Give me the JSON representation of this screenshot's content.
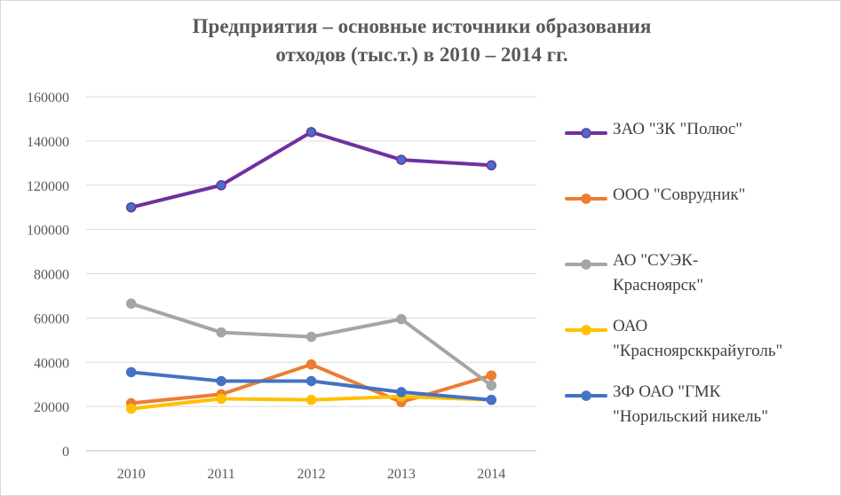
{
  "chart_data": {
    "type": "line",
    "title_lines": [
      "Предприятия – основные источники образования",
      "отходов (тыс.т.) в 2010 – 2014 гг."
    ],
    "categories": [
      "2010",
      "2011",
      "2012",
      "2013",
      "2014"
    ],
    "ylim": [
      0,
      160000
    ],
    "yticks": [
      "0",
      "20000",
      "40000",
      "60000",
      "80000",
      "100000",
      "120000",
      "140000",
      "160000"
    ],
    "grid": true,
    "legend_position": "right",
    "series": [
      {
        "name": "ЗАО \"ЗК \"Полюс\"",
        "color": "#7030a0",
        "marker": "#4472c4",
        "values": [
          110000,
          120000,
          144000,
          131500,
          129000
        ]
      },
      {
        "name": "ООО \"Соврудник\"",
        "color": "#ed7d31",
        "marker": "#ed7d31",
        "values": [
          21500,
          25500,
          39000,
          22000,
          34000
        ]
      },
      {
        "name": "АО \"СУЭК-\nКрасноярск\"",
        "color": "#a5a5a5",
        "marker": "#a5a5a5",
        "values": [
          66500,
          53500,
          51500,
          59500,
          29500
        ]
      },
      {
        "name": "ОАО\n\"Красноярсккрайуголь\"",
        "color": "#ffc000",
        "marker": "#ffc000",
        "values": [
          19000,
          23500,
          23000,
          24500,
          23000
        ]
      },
      {
        "name": "ЗФ ОАО \"ГМК\n\"Норильский никель\"",
        "color": "#4472c4",
        "marker": "#4472c4",
        "values": [
          35500,
          31500,
          31500,
          26500,
          23000
        ]
      }
    ]
  }
}
